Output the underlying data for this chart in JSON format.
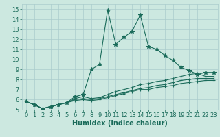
{
  "title": "",
  "xlabel": "Humidex (Indice chaleur)",
  "ylabel": "",
  "bg_color": "#cce8e0",
  "grid_color": "#aacccc",
  "line_color": "#1a6b5a",
  "xlim": [
    -0.5,
    23.5
  ],
  "ylim": [
    5,
    15.5
  ],
  "xticks": [
    0,
    1,
    2,
    3,
    4,
    5,
    6,
    7,
    8,
    9,
    10,
    11,
    12,
    13,
    14,
    15,
    16,
    17,
    18,
    19,
    20,
    21,
    22,
    23
  ],
  "yticks": [
    5,
    6,
    7,
    8,
    9,
    10,
    11,
    12,
    13,
    14,
    15
  ],
  "lines": [
    {
      "x": [
        0,
        1,
        2,
        3,
        4,
        5,
        6,
        7,
        8,
        9,
        10,
        11,
        12,
        13,
        14,
        15,
        16,
        17,
        18,
        19,
        20,
        21,
        22,
        23
      ],
      "y": [
        5.8,
        5.5,
        5.1,
        5.3,
        5.5,
        5.7,
        6.3,
        6.5,
        9.0,
        9.5,
        14.9,
        11.5,
        12.2,
        12.8,
        14.4,
        11.3,
        11.0,
        10.4,
        9.9,
        9.2,
        8.9,
        8.5,
        8.7,
        8.7
      ],
      "marker": "*",
      "ms": 4
    },
    {
      "x": [
        0,
        1,
        2,
        3,
        4,
        5,
        6,
        7,
        8,
        9,
        10,
        11,
        12,
        13,
        14,
        15,
        16,
        17,
        18,
        19,
        20,
        21,
        22,
        23
      ],
      "y": [
        5.8,
        5.5,
        5.1,
        5.3,
        5.5,
        5.7,
        6.1,
        6.3,
        6.1,
        6.2,
        6.5,
        6.8,
        7.0,
        7.2,
        7.5,
        7.6,
        7.8,
        7.9,
        8.1,
        8.3,
        8.5,
        8.6,
        8.3,
        8.3
      ],
      "marker": "+",
      "ms": 3
    },
    {
      "x": [
        0,
        1,
        2,
        3,
        4,
        5,
        6,
        7,
        8,
        9,
        10,
        11,
        12,
        13,
        14,
        15,
        16,
        17,
        18,
        19,
        20,
        21,
        22,
        23
      ],
      "y": [
        5.8,
        5.5,
        5.1,
        5.3,
        5.5,
        5.7,
        6.0,
        6.1,
        6.0,
        6.1,
        6.3,
        6.5,
        6.7,
        6.9,
        7.1,
        7.2,
        7.4,
        7.5,
        7.7,
        7.9,
        8.0,
        8.1,
        8.1,
        8.1
      ],
      "marker": "+",
      "ms": 3
    },
    {
      "x": [
        0,
        1,
        2,
        3,
        4,
        5,
        6,
        7,
        8,
        9,
        10,
        11,
        12,
        13,
        14,
        15,
        16,
        17,
        18,
        19,
        20,
        21,
        22,
        23
      ],
      "y": [
        5.8,
        5.5,
        5.1,
        5.3,
        5.5,
        5.7,
        5.9,
        6.0,
        5.9,
        6.0,
        6.2,
        6.4,
        6.6,
        6.8,
        7.0,
        7.0,
        7.2,
        7.3,
        7.4,
        7.6,
        7.7,
        7.8,
        7.9,
        7.9
      ],
      "marker": "+",
      "ms": 3
    }
  ],
  "tick_fontsize": 6,
  "xlabel_fontsize": 7
}
